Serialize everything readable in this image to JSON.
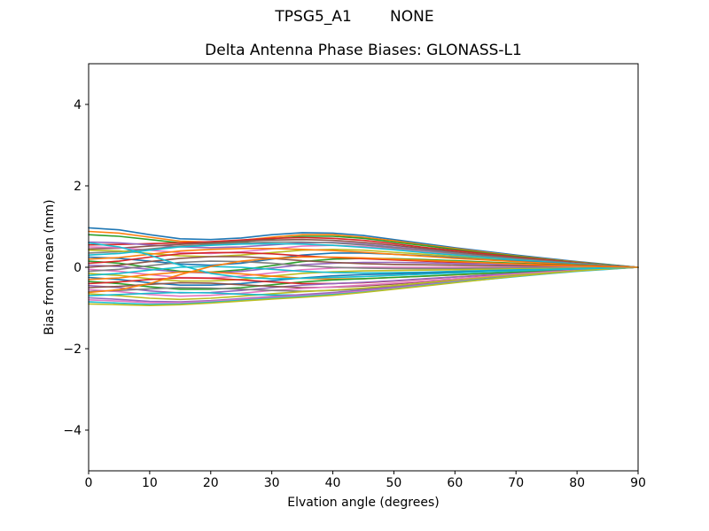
{
  "figure": {
    "suptitle": "TPSG5_A1        NONE",
    "title": "Delta Antenna Phase Biases: GLONASS-L1",
    "xlabel": "Elvation angle (degrees)",
    "ylabel": "Bias from mean (mm)",
    "background": "#ffffff",
    "frame_color": "#000000"
  },
  "chart_data": {
    "type": "line",
    "suptitle": "TPSG5_A1        NONE",
    "title": "Delta Antenna Phase Biases: GLONASS-L1",
    "xlabel": "Elvation angle (degrees)",
    "ylabel": "Bias from mean (mm)",
    "xlim": [
      0,
      90
    ],
    "ylim": [
      -5,
      5
    ],
    "xticks": [
      0,
      10,
      20,
      30,
      40,
      50,
      60,
      70,
      80,
      90
    ],
    "xticklabels": [
      "0",
      "10",
      "20",
      "30",
      "40",
      "50",
      "60",
      "70",
      "80",
      "90"
    ],
    "yticks": [
      -4,
      -2,
      0,
      2,
      4
    ],
    "yticklabels": [
      "−4",
      "−2",
      "0",
      "2",
      "4"
    ],
    "grid": false,
    "legend": null,
    "line_width": 1.6,
    "x": [
      0,
      5,
      10,
      15,
      20,
      25,
      30,
      35,
      40,
      45,
      50,
      55,
      60,
      65,
      70,
      75,
      80,
      85,
      90
    ],
    "series": [
      {
        "name": "line-01",
        "color": "#1f77b4",
        "values": [
          0.97,
          0.92,
          0.8,
          0.7,
          0.68,
          0.72,
          0.8,
          0.85,
          0.84,
          0.78,
          0.68,
          0.58,
          0.48,
          0.39,
          0.3,
          0.22,
          0.14,
          0.07,
          0
        ]
      },
      {
        "name": "line-02",
        "color": "#ff7f0e",
        "values": [
          0.88,
          0.84,
          0.74,
          0.64,
          0.62,
          0.66,
          0.74,
          0.8,
          0.8,
          0.74,
          0.65,
          0.55,
          0.46,
          0.37,
          0.28,
          0.2,
          0.13,
          0.06,
          0
        ]
      },
      {
        "name": "line-03",
        "color": "#2ca02c",
        "values": [
          0.8,
          0.76,
          0.68,
          0.6,
          0.58,
          0.62,
          0.7,
          0.76,
          0.76,
          0.71,
          0.62,
          0.53,
          0.44,
          0.35,
          0.27,
          0.19,
          0.12,
          0.06,
          0
        ]
      },
      {
        "name": "line-04",
        "color": "#d62728",
        "values": [
          0.55,
          0.56,
          0.58,
          0.6,
          0.63,
          0.67,
          0.71,
          0.73,
          0.71,
          0.66,
          0.58,
          0.49,
          0.41,
          0.33,
          0.25,
          0.18,
          0.11,
          0.05,
          0
        ]
      },
      {
        "name": "line-05",
        "color": "#9467bd",
        "values": [
          0.62,
          0.6,
          0.55,
          0.5,
          0.48,
          0.5,
          0.55,
          0.6,
          0.61,
          0.57,
          0.5,
          0.43,
          0.36,
          0.29,
          0.22,
          0.16,
          0.1,
          0.05,
          0
        ]
      },
      {
        "name": "line-06",
        "color": "#8c564b",
        "values": [
          0.45,
          0.47,
          0.52,
          0.56,
          0.6,
          0.64,
          0.67,
          0.68,
          0.66,
          0.61,
          0.54,
          0.46,
          0.38,
          0.3,
          0.23,
          0.16,
          0.1,
          0.05,
          0
        ]
      },
      {
        "name": "line-07",
        "color": "#e377c2",
        "values": [
          0.5,
          0.48,
          0.42,
          0.36,
          0.34,
          0.38,
          0.45,
          0.52,
          0.54,
          0.51,
          0.45,
          0.38,
          0.32,
          0.26,
          0.2,
          0.14,
          0.09,
          0.04,
          0
        ]
      },
      {
        "name": "line-08",
        "color": "#7f7f7f",
        "values": [
          0.35,
          0.38,
          0.45,
          0.52,
          0.56,
          0.6,
          0.62,
          0.62,
          0.6,
          0.55,
          0.48,
          0.41,
          0.34,
          0.27,
          0.21,
          0.15,
          0.09,
          0.04,
          0
        ]
      },
      {
        "name": "line-09",
        "color": "#bcbd22",
        "values": [
          0.42,
          0.4,
          0.34,
          0.28,
          0.26,
          0.3,
          0.36,
          0.42,
          0.44,
          0.42,
          0.37,
          0.32,
          0.27,
          0.22,
          0.17,
          0.12,
          0.08,
          0.04,
          0
        ]
      },
      {
        "name": "line-10",
        "color": "#17becf",
        "values": [
          0.3,
          0.34,
          0.42,
          0.5,
          0.54,
          0.57,
          0.58,
          0.57,
          0.54,
          0.49,
          0.43,
          0.36,
          0.3,
          0.24,
          0.18,
          0.13,
          0.08,
          0.04,
          0
        ]
      },
      {
        "name": "line-11",
        "color": "#1f77b4",
        "values": [
          0.25,
          0.22,
          0.15,
          0.08,
          0.05,
          0.1,
          0.2,
          0.3,
          0.35,
          0.35,
          0.32,
          0.28,
          0.24,
          0.19,
          0.15,
          0.11,
          0.07,
          0.03,
          0
        ]
      },
      {
        "name": "line-12",
        "color": "#ff7f0e",
        "values": [
          0.2,
          0.24,
          0.32,
          0.4,
          0.44,
          0.46,
          0.46,
          0.44,
          0.41,
          0.37,
          0.32,
          0.27,
          0.22,
          0.18,
          0.14,
          0.1,
          0.06,
          0.03,
          0
        ]
      },
      {
        "name": "line-13",
        "color": "#2ca02c",
        "values": [
          0.15,
          0.1,
          0.0,
          -0.1,
          -0.12,
          -0.06,
          0.04,
          0.14,
          0.2,
          0.22,
          0.21,
          0.19,
          0.16,
          0.13,
          0.1,
          0.07,
          0.05,
          0.02,
          0
        ]
      },
      {
        "name": "line-14",
        "color": "#d62728",
        "values": [
          0.1,
          0.15,
          0.25,
          0.33,
          0.36,
          0.36,
          0.33,
          0.28,
          0.24,
          0.21,
          0.18,
          0.15,
          0.12,
          0.1,
          0.08,
          0.06,
          0.04,
          0.02,
          0
        ]
      },
      {
        "name": "line-15",
        "color": "#9467bd",
        "values": [
          0.05,
          0.02,
          -0.05,
          -0.12,
          -0.14,
          -0.1,
          -0.02,
          0.06,
          0.1,
          0.12,
          0.12,
          0.11,
          0.09,
          0.08,
          0.06,
          0.04,
          0.03,
          0.01,
          0
        ]
      },
      {
        "name": "line-16",
        "color": "#8c564b",
        "values": [
          0.0,
          0.05,
          0.14,
          0.22,
          0.26,
          0.26,
          0.22,
          0.16,
          0.12,
          0.09,
          0.07,
          0.06,
          0.05,
          0.04,
          0.03,
          0.02,
          0.01,
          0.01,
          0
        ]
      },
      {
        "name": "line-17",
        "color": "#e377c2",
        "values": [
          -0.05,
          -0.1,
          -0.18,
          -0.25,
          -0.26,
          -0.22,
          -0.14,
          -0.06,
          -0.02,
          0.0,
          0.0,
          0.0,
          0.0,
          0.0,
          0.0,
          0.0,
          0.0,
          0.0,
          0
        ]
      },
      {
        "name": "line-18",
        "color": "#7f7f7f",
        "values": [
          -0.1,
          -0.05,
          0.04,
          0.12,
          0.15,
          0.14,
          0.1,
          0.04,
          0.0,
          -0.02,
          -0.03,
          -0.03,
          -0.03,
          -0.02,
          -0.02,
          -0.01,
          -0.01,
          0.0,
          0
        ]
      },
      {
        "name": "line-19",
        "color": "#bcbd22",
        "values": [
          -0.15,
          -0.2,
          -0.28,
          -0.34,
          -0.34,
          -0.3,
          -0.22,
          -0.15,
          -0.11,
          -0.09,
          -0.08,
          -0.07,
          -0.06,
          -0.05,
          -0.04,
          -0.03,
          -0.02,
          -0.01,
          0
        ]
      },
      {
        "name": "line-20",
        "color": "#17becf",
        "values": [
          -0.2,
          -0.15,
          -0.07,
          0.0,
          0.02,
          0.0,
          -0.05,
          -0.1,
          -0.13,
          -0.14,
          -0.13,
          -0.12,
          -0.1,
          -0.08,
          -0.06,
          -0.05,
          -0.03,
          -0.01,
          0
        ]
      },
      {
        "name": "line-21",
        "color": "#1f77b4",
        "values": [
          -0.25,
          -0.3,
          -0.38,
          -0.44,
          -0.44,
          -0.4,
          -0.33,
          -0.26,
          -0.21,
          -0.18,
          -0.16,
          -0.14,
          -0.12,
          -0.1,
          -0.08,
          -0.06,
          -0.04,
          -0.02,
          0
        ]
      },
      {
        "name": "line-22",
        "color": "#ff7f0e",
        "values": [
          -0.3,
          -0.26,
          -0.18,
          -0.12,
          -0.12,
          -0.16,
          -0.22,
          -0.27,
          -0.29,
          -0.28,
          -0.25,
          -0.22,
          -0.19,
          -0.15,
          -0.12,
          -0.09,
          -0.06,
          -0.03,
          0
        ]
      },
      {
        "name": "line-23",
        "color": "#2ca02c",
        "values": [
          -0.35,
          -0.4,
          -0.48,
          -0.54,
          -0.54,
          -0.5,
          -0.43,
          -0.36,
          -0.31,
          -0.28,
          -0.25,
          -0.22,
          -0.18,
          -0.15,
          -0.12,
          -0.08,
          -0.05,
          -0.02,
          0
        ]
      },
      {
        "name": "line-24",
        "color": "#d62728",
        "values": [
          -0.4,
          -0.36,
          -0.3,
          -0.26,
          -0.27,
          -0.31,
          -0.36,
          -0.4,
          -0.4,
          -0.38,
          -0.34,
          -0.29,
          -0.24,
          -0.2,
          -0.15,
          -0.11,
          -0.07,
          -0.03,
          0
        ]
      },
      {
        "name": "line-25",
        "color": "#9467bd",
        "values": [
          -0.45,
          -0.5,
          -0.58,
          -0.63,
          -0.62,
          -0.57,
          -0.5,
          -0.44,
          -0.4,
          -0.37,
          -0.33,
          -0.28,
          -0.24,
          -0.19,
          -0.15,
          -0.11,
          -0.07,
          -0.03,
          0
        ]
      },
      {
        "name": "line-26",
        "color": "#8c564b",
        "values": [
          -0.5,
          -0.47,
          -0.42,
          -0.38,
          -0.39,
          -0.43,
          -0.47,
          -0.5,
          -0.49,
          -0.46,
          -0.41,
          -0.35,
          -0.29,
          -0.24,
          -0.18,
          -0.13,
          -0.08,
          -0.04,
          0
        ]
      },
      {
        "name": "line-27",
        "color": "#e377c2",
        "values": [
          -0.55,
          -0.6,
          -0.67,
          -0.71,
          -0.69,
          -0.64,
          -0.57,
          -0.52,
          -0.48,
          -0.44,
          -0.39,
          -0.34,
          -0.28,
          -0.23,
          -0.17,
          -0.12,
          -0.08,
          -0.04,
          0
        ]
      },
      {
        "name": "line-28",
        "color": "#7f7f7f",
        "values": [
          -0.6,
          -0.57,
          -0.53,
          -0.5,
          -0.51,
          -0.54,
          -0.57,
          -0.59,
          -0.57,
          -0.53,
          -0.47,
          -0.4,
          -0.33,
          -0.27,
          -0.2,
          -0.15,
          -0.09,
          -0.04,
          0
        ]
      },
      {
        "name": "line-29",
        "color": "#bcbd22",
        "values": [
          -0.65,
          -0.7,
          -0.76,
          -0.79,
          -0.76,
          -0.71,
          -0.65,
          -0.6,
          -0.56,
          -0.51,
          -0.45,
          -0.38,
          -0.32,
          -0.25,
          -0.19,
          -0.14,
          -0.09,
          -0.04,
          0
        ]
      },
      {
        "name": "line-30",
        "color": "#17becf",
        "values": [
          -0.7,
          -0.67,
          -0.64,
          -0.62,
          -0.63,
          -0.66,
          -0.68,
          -0.68,
          -0.65,
          -0.6,
          -0.53,
          -0.45,
          -0.37,
          -0.3,
          -0.23,
          -0.16,
          -0.1,
          -0.05,
          0
        ]
      },
      {
        "name": "line-31",
        "color": "#9467bd",
        "values": [
          -0.75,
          -0.79,
          -0.84,
          -0.85,
          -0.82,
          -0.77,
          -0.72,
          -0.67,
          -0.62,
          -0.56,
          -0.49,
          -0.42,
          -0.35,
          -0.28,
          -0.21,
          -0.15,
          -0.09,
          -0.04,
          0
        ]
      },
      {
        "name": "line-32",
        "color": "#e377c2",
        "values": [
          -0.8,
          -0.83,
          -0.87,
          -0.87,
          -0.84,
          -0.79,
          -0.74,
          -0.7,
          -0.65,
          -0.59,
          -0.52,
          -0.44,
          -0.36,
          -0.29,
          -0.22,
          -0.15,
          -0.09,
          -0.04,
          0
        ]
      },
      {
        "name": "line-33",
        "color": "#17becf",
        "values": [
          -0.85,
          -0.88,
          -0.91,
          -0.9,
          -0.86,
          -0.81,
          -0.76,
          -0.72,
          -0.67,
          -0.61,
          -0.53,
          -0.45,
          -0.37,
          -0.29,
          -0.22,
          -0.15,
          -0.09,
          -0.04,
          0
        ]
      },
      {
        "name": "line-34",
        "color": "#bcbd22",
        "values": [
          -0.9,
          -0.92,
          -0.94,
          -0.92,
          -0.88,
          -0.83,
          -0.78,
          -0.74,
          -0.69,
          -0.62,
          -0.54,
          -0.46,
          -0.38,
          -0.3,
          -0.22,
          -0.15,
          -0.09,
          -0.04,
          0
        ]
      },
      {
        "name": "line-35",
        "color": "#17becf",
        "values": [
          0.6,
          0.5,
          0.3,
          0.05,
          -0.15,
          -0.25,
          -0.28,
          -0.27,
          -0.25,
          -0.23,
          -0.2,
          -0.17,
          -0.14,
          -0.11,
          -0.09,
          -0.06,
          -0.04,
          -0.02,
          0
        ]
      },
      {
        "name": "line-36",
        "color": "#ff7f0e",
        "values": [
          -0.62,
          -0.55,
          -0.4,
          -0.18,
          0.02,
          0.15,
          0.22,
          0.25,
          0.25,
          0.23,
          0.2,
          0.17,
          0.14,
          0.11,
          0.08,
          0.05,
          0.03,
          0.01,
          0
        ]
      }
    ]
  }
}
